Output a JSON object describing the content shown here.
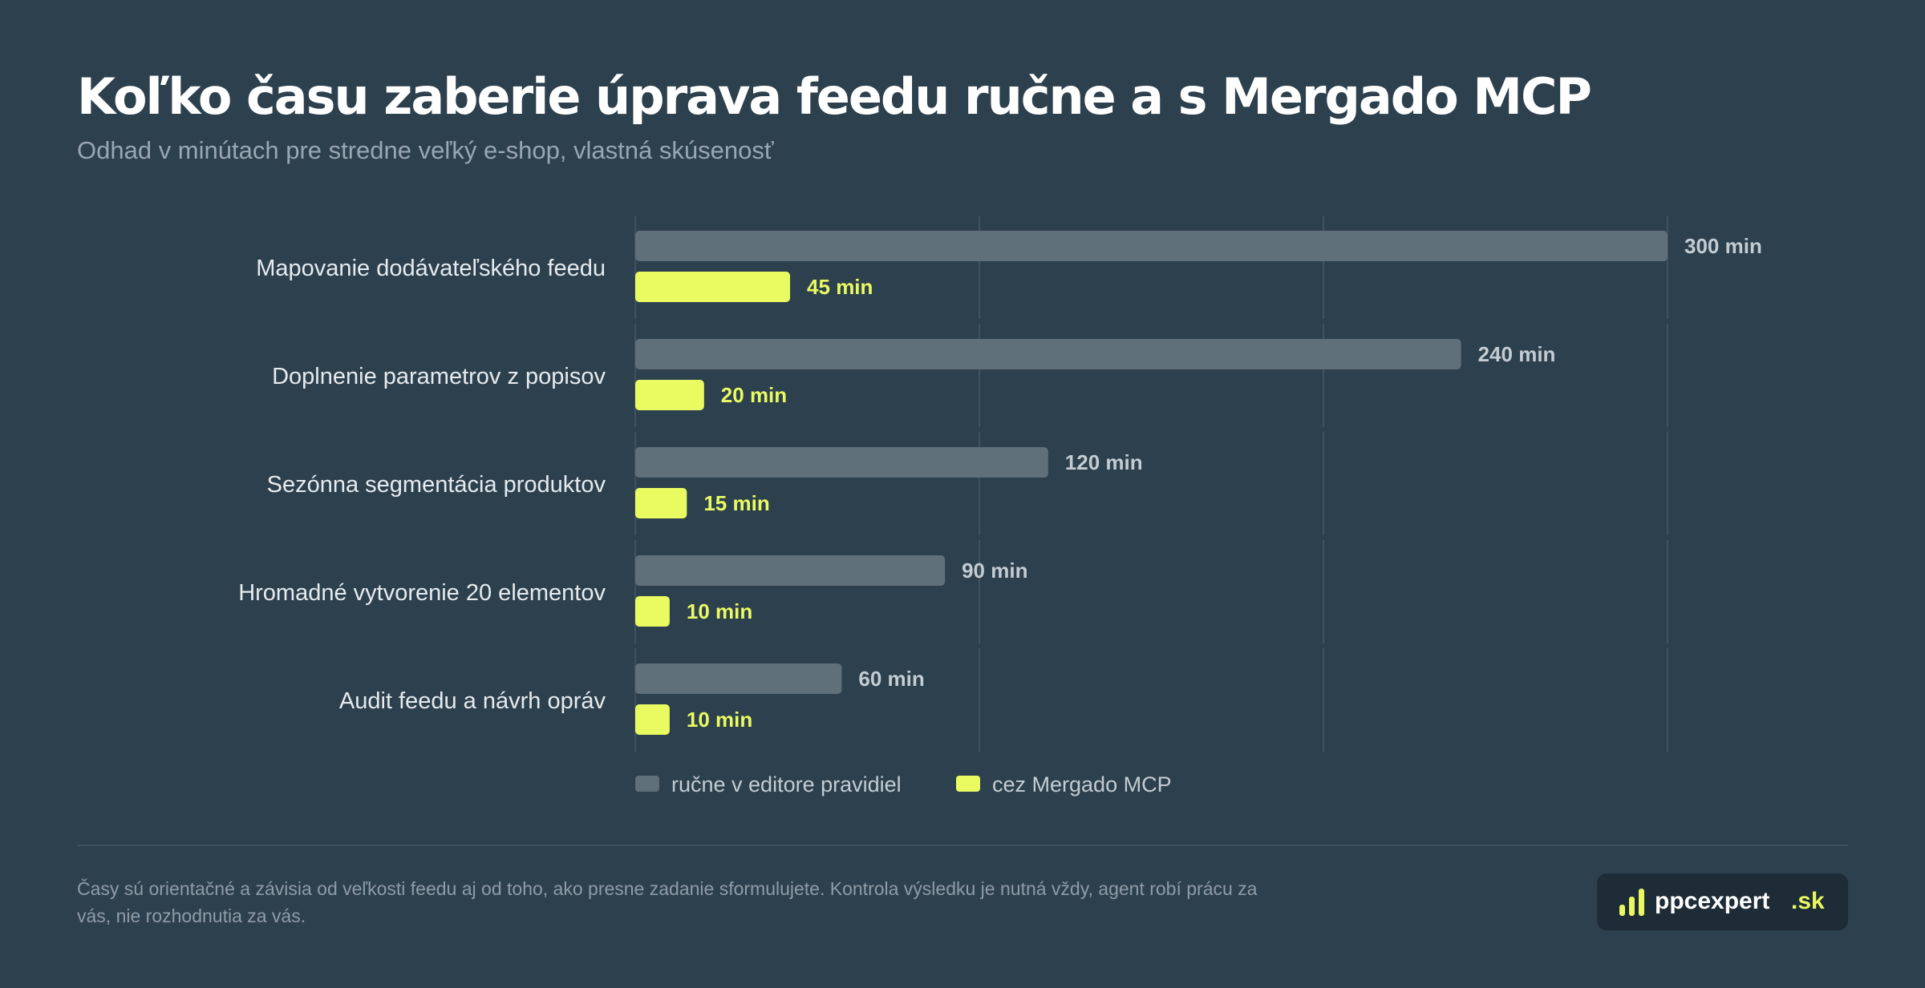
{
  "title": "Koľko času zaberie úprava feedu ručne a s Mergado MCP",
  "subtitle": "Odhad v minútach pre stredne veľký e-shop, vlastná skúsenosť",
  "colors": {
    "background": "#2d404e",
    "manual": "#5f707a",
    "mcp": "#eafb62",
    "grid": "#3f525f"
  },
  "chart_data": {
    "type": "bar",
    "orientation": "horizontal",
    "categories": [
      "Mapovanie dodávateľského feedu",
      "Doplnenie parametrov z popisov",
      "Sezónna segmentácia produktov",
      "Hromadné vytvorenie 20 elementov",
      "Audit feedu a návrh opráv"
    ],
    "series": [
      {
        "name": "ručne v editore pravidiel",
        "values": [
          300,
          240,
          120,
          90,
          60
        ],
        "labels": [
          "300 min",
          "240 min",
          "120 min",
          "90 min",
          "60 min"
        ],
        "color": "#5f707a"
      },
      {
        "name": "cez Mergado MCP",
        "values": [
          45,
          20,
          15,
          10,
          10
        ],
        "labels": [
          "45 min",
          "20 min",
          "15 min",
          "10 min",
          "10 min"
        ],
        "color": "#eafb62"
      }
    ],
    "xlim": [
      0,
      300
    ],
    "grid": true,
    "legend": "bottom"
  },
  "footnote": "Časy sú orientačné a závisia od veľkosti feedu aj od toho, ako presne zadanie sformulujete. Kontrola výsledku je nutná vždy, agent robí prácu za vás, nie rozhodnutia za vás.",
  "logo": {
    "name": "ppcexpert",
    "tld": ".sk",
    "icon": "bar-chart-icon"
  }
}
